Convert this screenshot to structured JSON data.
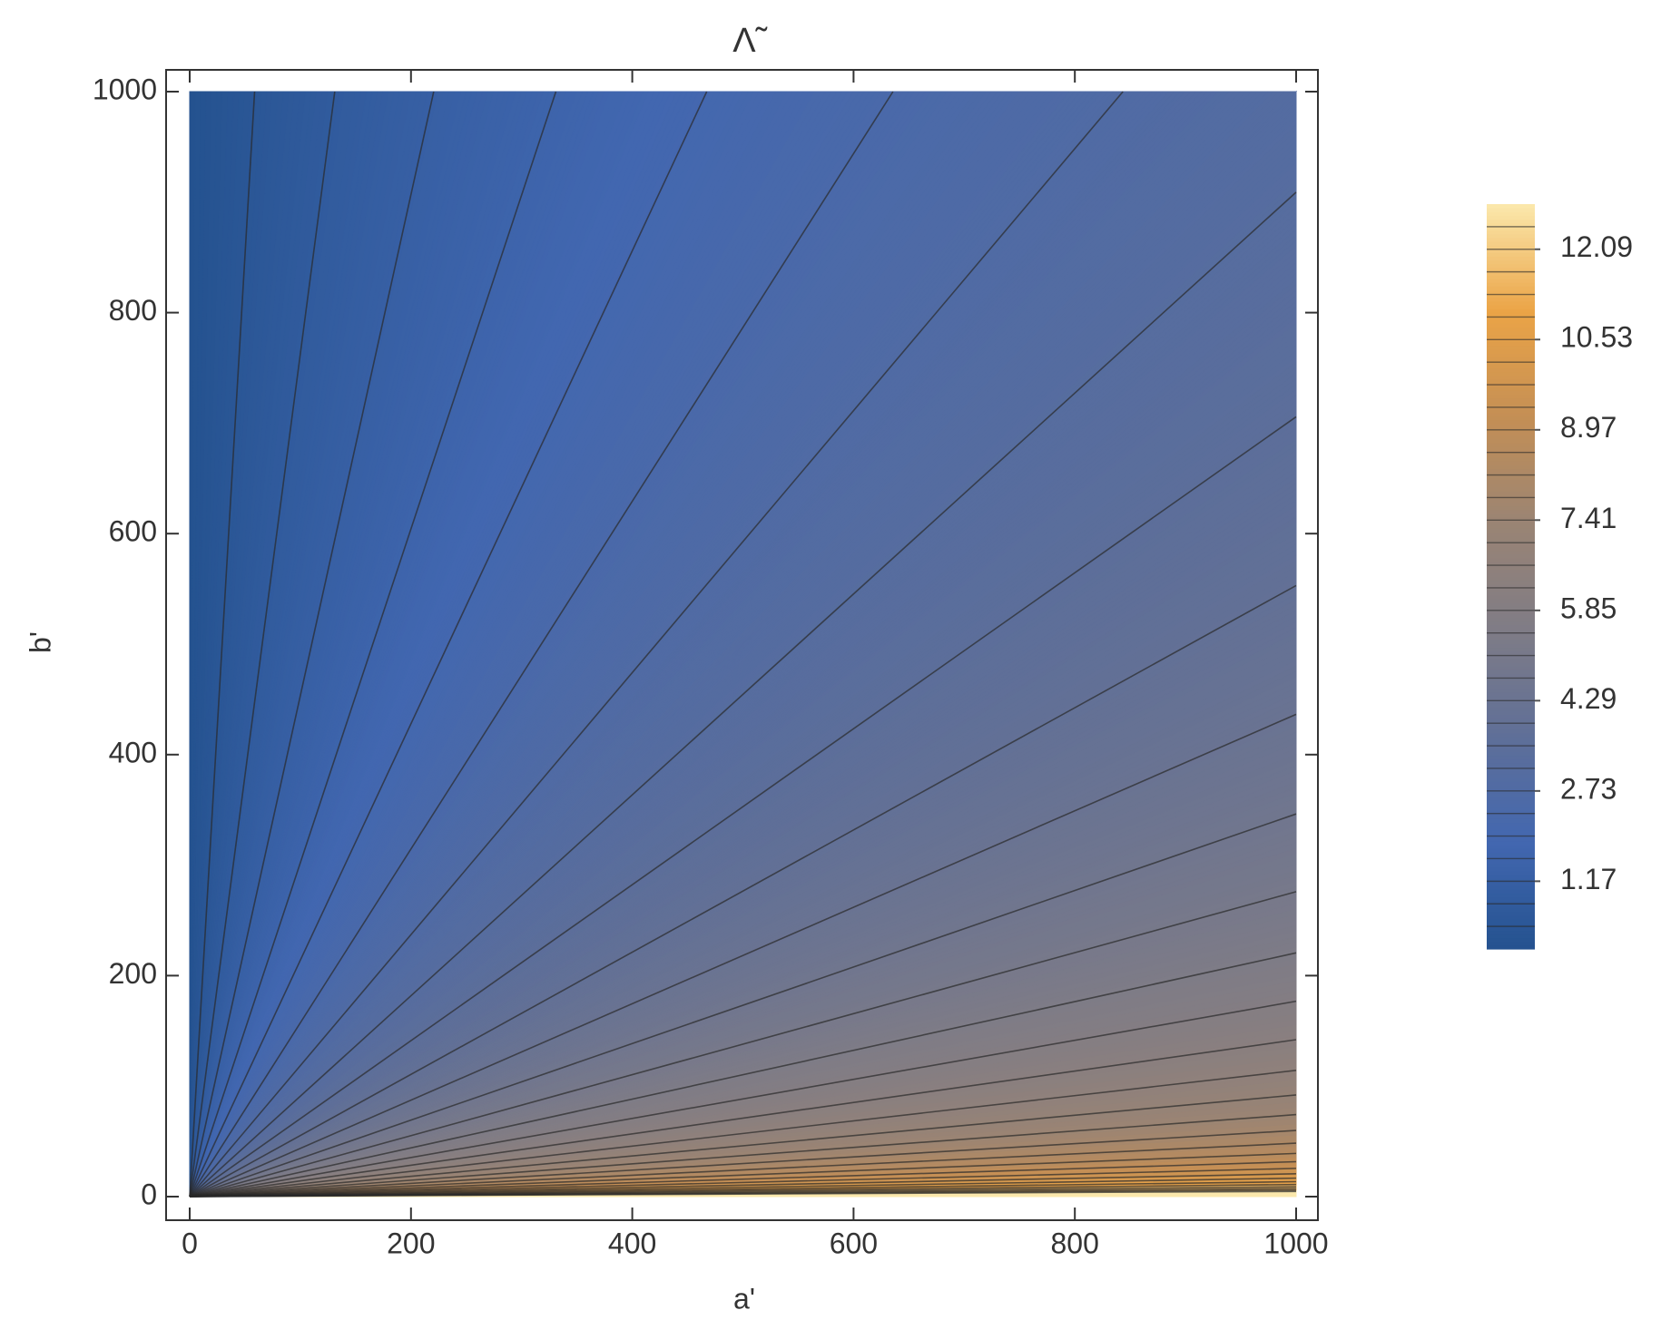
{
  "chart_data": {
    "type": "contour",
    "title": "Λ̃",
    "x_label": "a'",
    "y_label": "b'",
    "xlim": [
      0,
      1000
    ],
    "xticks": [
      0,
      200,
      400,
      600,
      800,
      1000
    ],
    "ylim": [
      0,
      1000
    ],
    "yticks": [
      0,
      200,
      400,
      600,
      800,
      1000
    ],
    "colorbar_lim": [
      0,
      12.87
    ],
    "colorbar_ticks": [
      1.17,
      2.73,
      4.29,
      5.85,
      7.41,
      8.97,
      10.53,
      12.09
    ],
    "contour_levels": [
      0.39,
      0.78,
      1.17,
      1.56,
      1.95,
      2.34,
      2.73,
      3.12,
      3.51,
      3.9,
      4.29,
      4.68,
      5.07,
      5.46,
      5.85,
      6.24,
      6.63,
      7.02,
      7.41,
      7.8,
      8.19,
      8.58,
      8.97,
      9.36,
      9.75,
      10.14,
      10.53,
      10.92,
      11.31,
      11.7,
      12.09,
      12.48
    ],
    "colormap": [
      "#24528f",
      "#4267b0",
      "#5f6f98",
      "#7f7c86",
      "#9a8474",
      "#c48f55",
      "#eba447",
      "#fbe8ac"
    ]
  }
}
